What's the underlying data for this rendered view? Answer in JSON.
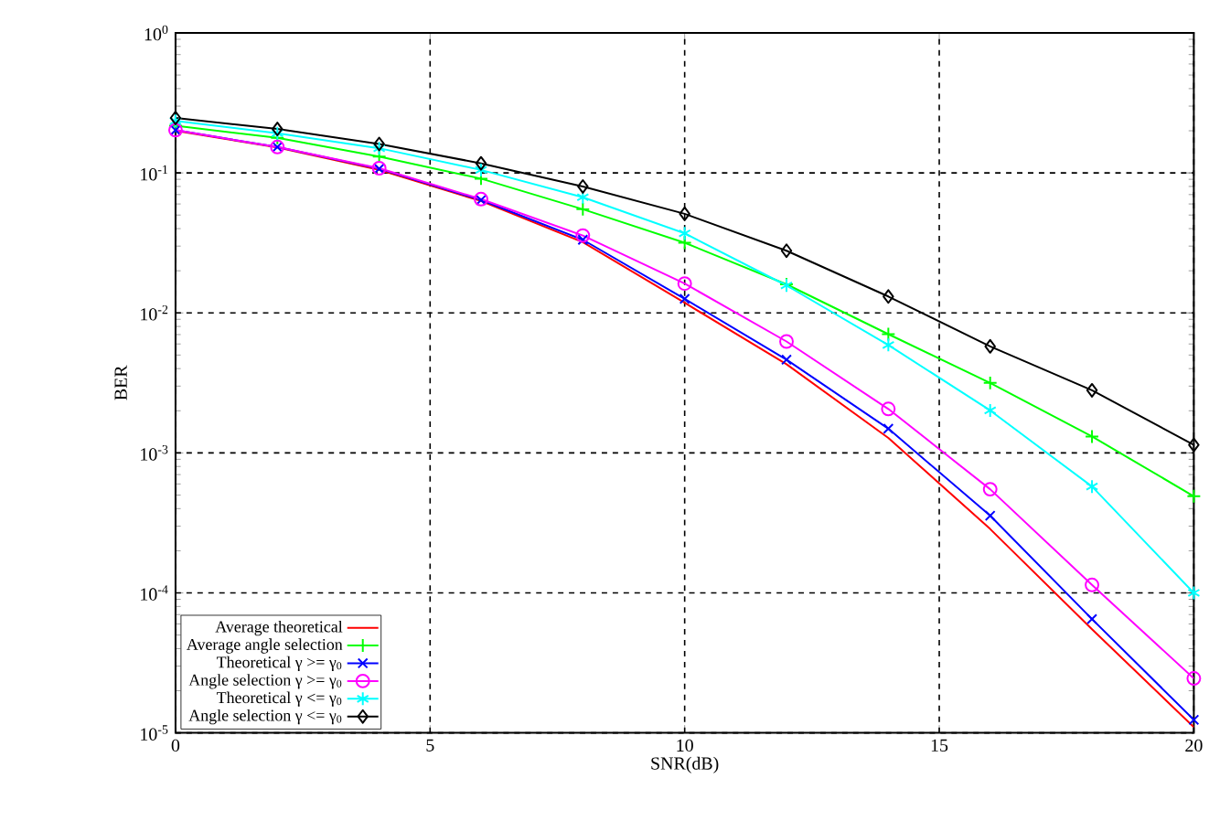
{
  "chart_data": {
    "type": "line",
    "xlabel": "SNR(dB)",
    "ylabel": "BER",
    "log": "y",
    "grid": true,
    "legend": "bottom left",
    "line_style": "solid",
    "x": [
      0,
      2,
      4,
      6,
      8,
      10,
      12,
      14,
      16,
      18,
      20
    ],
    "xlim": [
      0,
      20
    ],
    "xticks": [
      0,
      5,
      10,
      15,
      20
    ],
    "ylim": [
      1e-05,
      1
    ],
    "yticks": [
      {
        "value": 1e-05,
        "label": "10$^{-5}$"
      },
      {
        "value": 0.0001,
        "label": "10$^{-4}$"
      },
      {
        "value": 0.001,
        "label": "10$^{-3}$"
      },
      {
        "value": 0.01,
        "label": "10$^{-2}$"
      },
      {
        "value": 0.1,
        "label": "10$^{-1}$"
      },
      {
        "value": 1,
        "label": "10$^{0}$"
      }
    ],
    "series": [
      {
        "name": "Average theoretical",
        "color": "#ff0000",
        "marker": "none",
        "values": [
          0.2,
          0.152,
          0.105,
          0.063,
          0.032,
          0.0118,
          0.0043,
          0.00128,
          0.000286,
          5.5e-05,
          1.1e-05
        ]
      },
      {
        "name": "Average angle selection",
        "color": "#00ff00",
        "marker": "plus",
        "values": [
          0.217,
          0.178,
          0.131,
          0.091,
          0.055,
          0.0317,
          0.016,
          0.00705,
          0.00316,
          0.00131,
          0.00049
        ]
      },
      {
        "name": "Theoretical γ >= γ$_{0}$",
        "color": "#0000ff",
        "marker": "cross",
        "values": [
          0.202,
          0.153,
          0.107,
          0.064,
          0.0333,
          0.0126,
          0.00463,
          0.00149,
          0.000356,
          6.5e-05,
          1.24e-05
        ]
      },
      {
        "name": "Angle selection γ >= γ$_{0}$",
        "color": "#ff00ff",
        "marker": "circle",
        "values": [
          0.202,
          0.153,
          0.108,
          0.065,
          0.0357,
          0.0162,
          0.00625,
          0.00206,
          0.00055,
          0.000114,
          2.45e-05
        ]
      },
      {
        "name": "Theoretical γ <= γ$_{0}$",
        "color": "#00ffff",
        "marker": "cross8",
        "values": [
          0.235,
          0.192,
          0.15,
          0.105,
          0.067,
          0.037,
          0.0157,
          0.0059,
          0.00201,
          0.000575,
          0.0001
        ]
      },
      {
        "name": "Angle selection γ <= γ$_{0}$",
        "color": "#000000",
        "marker": "diamond",
        "values": [
          0.247,
          0.206,
          0.161,
          0.117,
          0.08,
          0.051,
          0.0278,
          0.0131,
          0.00577,
          0.0028,
          0.00114
        ]
      }
    ]
  }
}
